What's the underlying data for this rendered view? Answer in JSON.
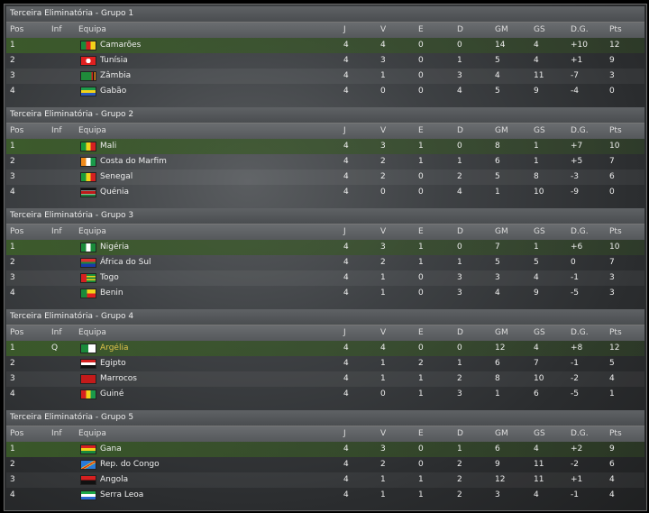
{
  "columns": {
    "pos": "Pos",
    "inf": "Inf",
    "team": "Equipa",
    "j": "J",
    "v": "V",
    "e": "E",
    "d": "D",
    "gm": "GM",
    "gs": "GS",
    "dg": "D.G.",
    "pts": "Pts"
  },
  "groups": [
    {
      "title": "Terceira Eliminatória - Grupo 1",
      "rows": [
        {
          "pos": "1",
          "inf": "",
          "team": "Camarões",
          "flag": "cameroon-flag",
          "j": "4",
          "v": "4",
          "e": "0",
          "d": "0",
          "gm": "14",
          "gs": "4",
          "dg": "+10",
          "pts": "12"
        },
        {
          "pos": "2",
          "inf": "",
          "team": "Tunísia",
          "flag": "tunisia-flag",
          "j": "4",
          "v": "3",
          "e": "0",
          "d": "1",
          "gm": "5",
          "gs": "4",
          "dg": "+1",
          "pts": "9"
        },
        {
          "pos": "3",
          "inf": "",
          "team": "Zâmbia",
          "flag": "zambia-flag",
          "j": "4",
          "v": "1",
          "e": "0",
          "d": "3",
          "gm": "4",
          "gs": "11",
          "dg": "-7",
          "pts": "3"
        },
        {
          "pos": "4",
          "inf": "",
          "team": "Gabão",
          "flag": "gabon-flag",
          "j": "4",
          "v": "0",
          "e": "0",
          "d": "4",
          "gm": "5",
          "gs": "9",
          "dg": "-4",
          "pts": "0"
        }
      ]
    },
    {
      "title": "Terceira Eliminatória - Grupo 2",
      "rows": [
        {
          "pos": "1",
          "inf": "",
          "team": "Mali",
          "flag": "mali-flag",
          "j": "4",
          "v": "3",
          "e": "1",
          "d": "0",
          "gm": "8",
          "gs": "1",
          "dg": "+7",
          "pts": "10"
        },
        {
          "pos": "2",
          "inf": "",
          "team": "Costa do Marfim",
          "flag": "ivory-coast-flag",
          "j": "4",
          "v": "2",
          "e": "1",
          "d": "1",
          "gm": "6",
          "gs": "1",
          "dg": "+5",
          "pts": "7"
        },
        {
          "pos": "3",
          "inf": "",
          "team": "Senegal",
          "flag": "senegal-flag",
          "j": "4",
          "v": "2",
          "e": "0",
          "d": "2",
          "gm": "5",
          "gs": "8",
          "dg": "-3",
          "pts": "6"
        },
        {
          "pos": "4",
          "inf": "",
          "team": "Quénia",
          "flag": "kenya-flag",
          "j": "4",
          "v": "0",
          "e": "0",
          "d": "4",
          "gm": "1",
          "gs": "10",
          "dg": "-9",
          "pts": "0"
        }
      ]
    },
    {
      "title": "Terceira Eliminatória - Grupo 3",
      "rows": [
        {
          "pos": "1",
          "inf": "",
          "team": "Nigéria",
          "flag": "nigeria-flag",
          "j": "4",
          "v": "3",
          "e": "1",
          "d": "0",
          "gm": "7",
          "gs": "1",
          "dg": "+6",
          "pts": "10"
        },
        {
          "pos": "2",
          "inf": "",
          "team": "África do Sul",
          "flag": "south-africa-flag",
          "j": "4",
          "v": "2",
          "e": "1",
          "d": "1",
          "gm": "5",
          "gs": "5",
          "dg": "0",
          "pts": "7"
        },
        {
          "pos": "3",
          "inf": "",
          "team": "Togo",
          "flag": "togo-flag",
          "j": "4",
          "v": "1",
          "e": "0",
          "d": "3",
          "gm": "3",
          "gs": "4",
          "dg": "-1",
          "pts": "3"
        },
        {
          "pos": "4",
          "inf": "",
          "team": "Benin",
          "flag": "benin-flag",
          "j": "4",
          "v": "1",
          "e": "0",
          "d": "3",
          "gm": "4",
          "gs": "9",
          "dg": "-5",
          "pts": "3"
        }
      ]
    },
    {
      "title": "Terceira Eliminatória - Grupo 4",
      "rows": [
        {
          "pos": "1",
          "inf": "Q",
          "team": "Argélia",
          "flag": "algeria-flag",
          "highlight": true,
          "j": "4",
          "v": "4",
          "e": "0",
          "d": "0",
          "gm": "12",
          "gs": "4",
          "dg": "+8",
          "pts": "12"
        },
        {
          "pos": "2",
          "inf": "",
          "team": "Egipto",
          "flag": "egypt-flag",
          "j": "4",
          "v": "1",
          "e": "2",
          "d": "1",
          "gm": "6",
          "gs": "7",
          "dg": "-1",
          "pts": "5"
        },
        {
          "pos": "3",
          "inf": "",
          "team": "Marrocos",
          "flag": "morocco-flag",
          "j": "4",
          "v": "1",
          "e": "1",
          "d": "2",
          "gm": "8",
          "gs": "10",
          "dg": "-2",
          "pts": "4"
        },
        {
          "pos": "4",
          "inf": "",
          "team": "Guiné",
          "flag": "guinea-flag",
          "j": "4",
          "v": "0",
          "e": "1",
          "d": "3",
          "gm": "1",
          "gs": "6",
          "dg": "-5",
          "pts": "1"
        }
      ]
    },
    {
      "title": "Terceira Eliminatória - Grupo 5",
      "rows": [
        {
          "pos": "1",
          "inf": "",
          "team": "Gana",
          "flag": "ghana-flag",
          "j": "4",
          "v": "3",
          "e": "0",
          "d": "1",
          "gm": "6",
          "gs": "4",
          "dg": "+2",
          "pts": "9"
        },
        {
          "pos": "2",
          "inf": "",
          "team": "Rep. do Congo",
          "flag": "congo-flag",
          "j": "4",
          "v": "2",
          "e": "0",
          "d": "2",
          "gm": "9",
          "gs": "11",
          "dg": "-2",
          "pts": "6"
        },
        {
          "pos": "3",
          "inf": "",
          "team": "Angola",
          "flag": "angola-flag",
          "j": "4",
          "v": "1",
          "e": "1",
          "d": "2",
          "gm": "12",
          "gs": "11",
          "dg": "+1",
          "pts": "4"
        },
        {
          "pos": "4",
          "inf": "",
          "team": "Serra Leoa",
          "flag": "sierra-leone-flag",
          "j": "4",
          "v": "1",
          "e": "1",
          "d": "2",
          "gm": "3",
          "gs": "4",
          "dg": "-1",
          "pts": "4"
        }
      ]
    }
  ]
}
